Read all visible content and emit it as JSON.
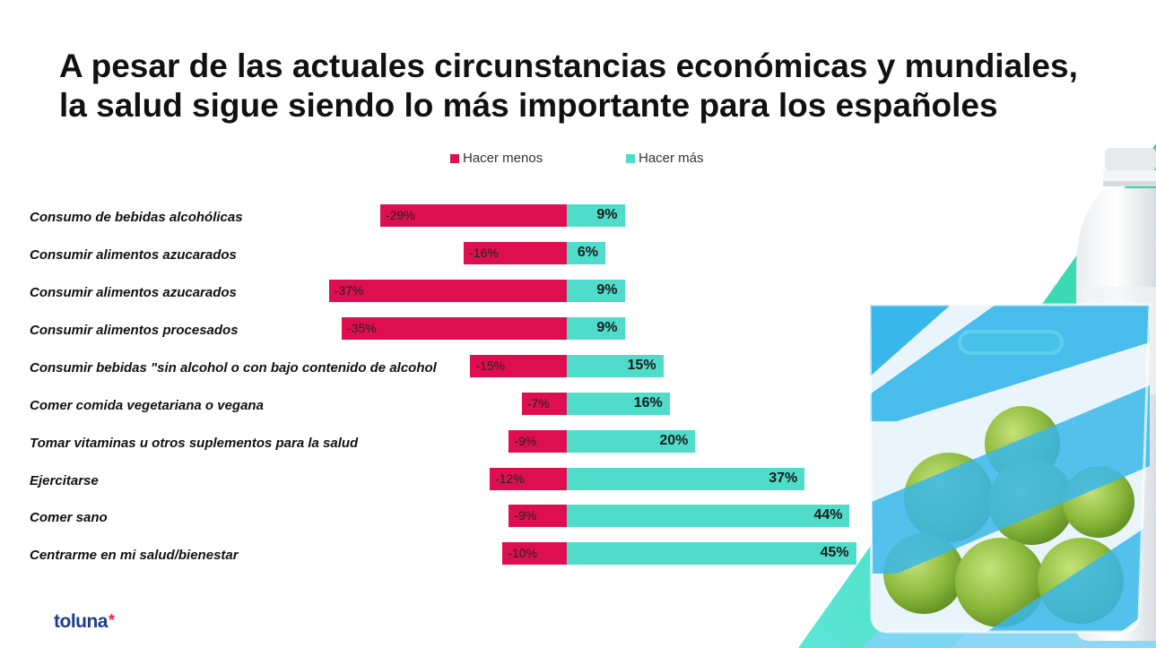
{
  "brand": {
    "name": "toluna",
    "mark": "*"
  },
  "colors": {
    "negative": "#dd0f50",
    "positive": "#4fdcca",
    "brand_blue": "#1f3a8f",
    "brand_pink": "#e2225f"
  },
  "chart_data": {
    "type": "bar",
    "orientation": "horizontal-diverging",
    "title_lines": [
      "A pesar de las actuales circunstancias económicas y mundiales,",
      "la salud sigue siendo lo más importante para los españoles"
    ],
    "legend": {
      "negative": "Hacer menos",
      "positive": "Hacer más",
      "placement": "top"
    },
    "categories": [
      "Consumo de bebidas alcohólicas",
      "Consumir alimentos azucarados",
      "Consumir alimentos azucarados",
      "Consumir alimentos procesados",
      "Consumir bebidas \"sin alcohol o con bajo contenido de alcohol",
      "Comer comida vegetariana o vegana",
      "Tomar vitaminas u otros suplementos para la salud",
      "Ejercitarse",
      "Comer sano",
      "Centrarme en mi salud/bienestar"
    ],
    "series": [
      {
        "name": "Hacer menos",
        "values": [
          -29,
          -16,
          -37,
          -35,
          -15,
          -7,
          -9,
          -12,
          -9,
          -10
        ],
        "labels": [
          "-29%",
          "-16%",
          "-37%",
          "-35%",
          "-15%",
          "-7%",
          "-9%",
          "-12%",
          "-9%",
          "-10%"
        ]
      },
      {
        "name": "Hacer más",
        "values": [
          9,
          6,
          9,
          9,
          15,
          16,
          20,
          37,
          44,
          45
        ],
        "labels": [
          "9%",
          "6%",
          "9%",
          "9%",
          "15%",
          "16%",
          "20%",
          "37%",
          "44%",
          "45%"
        ]
      }
    ],
    "unit": "%",
    "grid": false
  }
}
